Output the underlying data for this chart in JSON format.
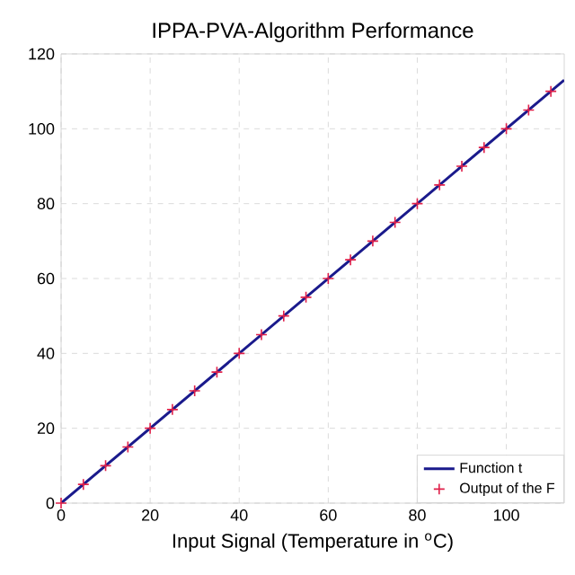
{
  "chart_data": {
    "type": "line",
    "title": "IPPA-PVA-Algorithm Performance",
    "xlabel": "Input Signal (Temperature in $^{o}$C)",
    "xlim": [
      0,
      113
    ],
    "xticks": [
      0,
      20,
      40,
      60,
      80,
      100
    ],
    "ylim": [
      0,
      120
    ],
    "yticks": [
      0,
      20,
      40,
      60,
      80,
      100,
      120
    ],
    "grid": true,
    "legend": "bottom right",
    "series": [
      {
        "name": "Function t",
        "color": "#1a1a8c",
        "marker": "none",
        "x": [
          0,
          113
        ],
        "values": [
          0,
          113
        ]
      },
      {
        "name": "Output of the F",
        "type": "scatter",
        "color": "#e0204a",
        "marker": "cross",
        "x": [
          0,
          5,
          10,
          15,
          20,
          25,
          30,
          35,
          40,
          45,
          50,
          55,
          60,
          65,
          70,
          75,
          80,
          85,
          90,
          95,
          100,
          105,
          110
        ],
        "values": [
          0,
          5,
          10,
          15,
          20,
          25,
          30,
          35,
          40,
          45,
          50,
          55,
          60,
          65,
          70,
          75,
          80,
          85,
          90,
          95,
          100,
          105,
          110
        ]
      }
    ]
  }
}
